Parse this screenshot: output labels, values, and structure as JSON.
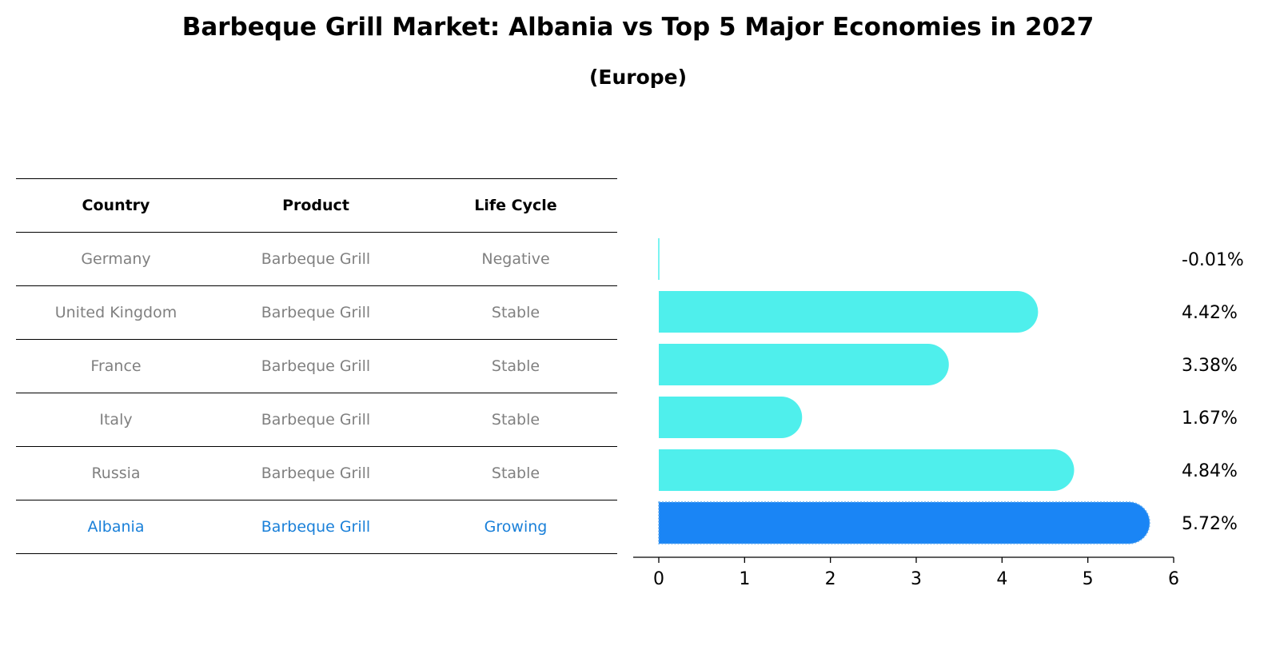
{
  "title": "Barbeque Grill Market: Albania vs Top 5 Major Economies in 2027",
  "subtitle": "(Europe)",
  "table": {
    "headers": [
      "Country",
      "Product",
      "Life Cycle"
    ],
    "rows": [
      [
        "Germany",
        "Barbeque Grill",
        "Negative"
      ],
      [
        "United Kingdom",
        "Barbeque Grill",
        "Stable"
      ],
      [
        "France",
        "Barbeque Grill",
        "Stable"
      ],
      [
        "Italy",
        "Barbeque Grill",
        "Stable"
      ],
      [
        "Russia",
        "Barbeque Grill",
        "Stable"
      ],
      [
        "Albania",
        "Barbeque Grill",
        "Growing"
      ]
    ],
    "highlight_row": "Albania"
  },
  "chart_data": {
    "type": "bar",
    "orientation": "horizontal",
    "categories": [
      "Germany",
      "United Kingdom",
      "France",
      "Italy",
      "Russia",
      "Albania"
    ],
    "values": [
      -0.01,
      4.42,
      3.38,
      1.67,
      4.84,
      5.72
    ],
    "value_labels": [
      "-0.01%",
      "4.42%",
      "3.38%",
      "1.67%",
      "4.84%",
      "5.72%"
    ],
    "xlim": [
      0,
      6
    ],
    "xticks": [
      "0",
      "1",
      "2",
      "3",
      "4",
      "5",
      "6"
    ],
    "highlight": "Albania",
    "colors": {
      "default": "#4fefec",
      "highlight": "#1a85f5"
    },
    "grid": false
  }
}
